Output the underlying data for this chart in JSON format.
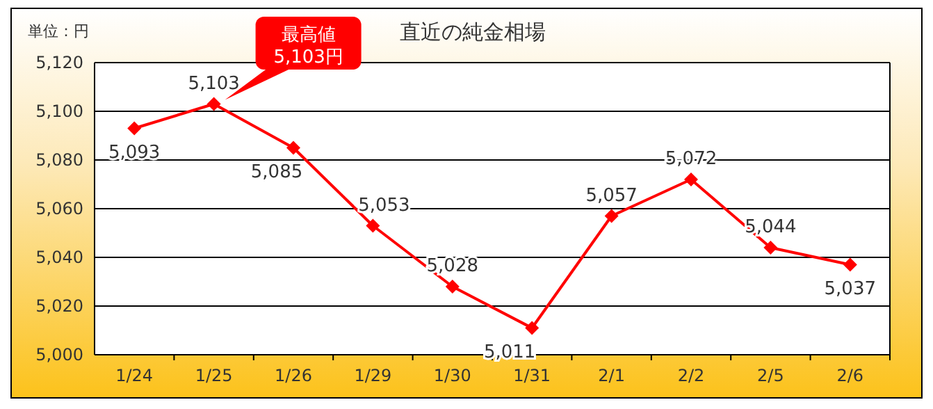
{
  "chart_data": {
    "type": "line",
    "title": "直近の純金相場",
    "ylabel": "単位：円",
    "categories": [
      "1/24",
      "1/25",
      "1/26",
      "1/29",
      "1/30",
      "1/31",
      "2/1",
      "2/2",
      "2/5",
      "2/6"
    ],
    "series": [
      {
        "color": "#ff0000",
        "values": [
          5093,
          5103,
          5085,
          5053,
          5028,
          5011,
          5057,
          5072,
          5044,
          5037
        ],
        "value_labels": [
          "5,093",
          "5,103",
          "5,085",
          "5,053",
          "5,028",
          "5,011",
          "5,057",
          "5,072",
          "5,044",
          "5,037"
        ]
      }
    ],
    "ylim": [
      5000,
      5120
    ],
    "yticks": [
      {
        "value": 5000,
        "label": "5,000"
      },
      {
        "value": 5020,
        "label": "5,020"
      },
      {
        "value": 5040,
        "label": "5,040"
      },
      {
        "value": 5060,
        "label": "5,060"
      },
      {
        "value": 5080,
        "label": "5,080"
      },
      {
        "value": 5100,
        "label": "5,100"
      },
      {
        "value": 5120,
        "label": "5,120"
      }
    ],
    "grid": "y",
    "marker": "diamond",
    "line_style": "solid",
    "annotations": [
      {
        "text": "最高値\n5,103円",
        "x": "1/25",
        "y": 5103
      }
    ]
  }
}
